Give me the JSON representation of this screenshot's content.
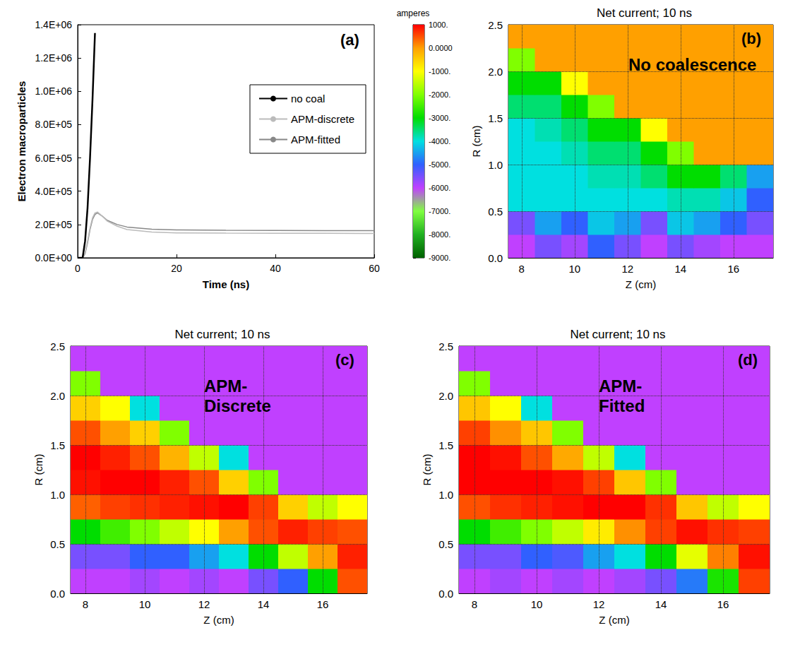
{
  "chart_data": [
    {
      "type": "line",
      "panel_label": "(a)",
      "x_label": "Time (ns)",
      "y_label": "Electron macroparticles",
      "x": [
        0,
        1,
        1.5,
        2,
        2.5,
        3,
        3.5,
        4,
        5,
        6,
        8,
        10,
        15,
        20,
        30,
        40,
        50,
        60
      ],
      "series": [
        {
          "name": "no coal",
          "color": "#000000",
          "values": [
            0,
            0,
            100000,
            300000,
            600000,
            950000,
            1350000,
            null,
            null,
            null,
            null,
            null,
            null,
            null,
            null,
            null,
            null,
            null
          ]
        },
        {
          "name": "APM-discrete",
          "color": "#bbbbbb",
          "values": [
            0,
            0,
            30000,
            100000,
            180000,
            240000,
            270000,
            275000,
            250000,
            220000,
            190000,
            170000,
            155000,
            150000,
            148000,
            147000,
            147000,
            146000
          ]
        },
        {
          "name": "APM-fitted",
          "color": "#888888",
          "values": [
            0,
            0,
            25000,
            90000,
            170000,
            230000,
            260000,
            270000,
            250000,
            225000,
            200000,
            185000,
            172000,
            168000,
            165000,
            164000,
            163000,
            163000
          ]
        }
      ],
      "xlim": [
        0,
        60
      ],
      "xticks": [
        0,
        20,
        40,
        60
      ],
      "ylim": [
        0,
        1400000
      ],
      "yticks": [
        {
          "value": 0,
          "label": "0.0E+00"
        },
        {
          "value": 200000,
          "label": "2.0E+05"
        },
        {
          "value": 400000,
          "label": "4.0E+05"
        },
        {
          "value": 600000,
          "label": "6.0E+05"
        },
        {
          "value": 800000,
          "label": "8.0E+05"
        },
        {
          "value": 1000000,
          "label": "1.0E+06"
        },
        {
          "value": 1200000,
          "label": "1.2E+06"
        },
        {
          "value": 1400000,
          "label": "1.4E+06"
        }
      ],
      "legend": "upper right",
      "grid": false
    },
    {
      "type": "colorbar",
      "title": "amperes",
      "range": [
        -9000,
        1000
      ],
      "ticks": [
        {
          "value": 1000,
          "label": "1000."
        },
        {
          "value": 0,
          "label": "0.0000"
        },
        {
          "value": -1000,
          "label": "-1000."
        },
        {
          "value": -2000,
          "label": "-2000."
        },
        {
          "value": -3000,
          "label": "-3000."
        },
        {
          "value": -4000,
          "label": "-4000."
        },
        {
          "value": -5000,
          "label": "-5000."
        },
        {
          "value": -6000,
          "label": "-6000."
        },
        {
          "value": -7000,
          "label": "-7000."
        },
        {
          "value": -8000,
          "label": "-8000."
        },
        {
          "value": -9000,
          "label": "-9000."
        }
      ]
    },
    {
      "type": "heatmap",
      "title": "Net current; 10 ns",
      "panel_label": "(b)",
      "annotation": "No coalescence",
      "x_label": "Z (cm)",
      "y_label": "R (cm)",
      "xlim": [
        7.5,
        17.5
      ],
      "xticks": [
        8,
        10,
        12,
        14,
        16
      ],
      "ylim": [
        0,
        2.5
      ],
      "yticks": [
        {
          "value": 0,
          "label": "0.0"
        },
        0.5,
        {
          "value": 1,
          "label": "1.0"
        },
        1.5,
        {
          "value": 2,
          "label": "2.0"
        },
        2.5
      ],
      "grid": true,
      "z": [
        8,
        9,
        10,
        11,
        12,
        13,
        14,
        15,
        16,
        17
      ],
      "r": [
        0.125,
        0.375,
        0.625,
        0.875,
        1.125,
        1.375,
        1.625,
        1.875,
        2.125,
        2.375
      ],
      "cells": [
        [
          -6000,
          -5500,
          -5800,
          -5000,
          -5500,
          -6000,
          -5500,
          -5800,
          -6000,
          -6000
        ],
        [
          -5500,
          -4500,
          -5000,
          -4200,
          -4500,
          -5500,
          -4200,
          -4500,
          -5000,
          -5500
        ],
        [
          -4000,
          -4000,
          -4000,
          -4000,
          -4000,
          -4000,
          -3800,
          -3800,
          -4200,
          -5000
        ],
        [
          -4000,
          -4000,
          -4000,
          -3800,
          -3800,
          -3500,
          -3000,
          -3000,
          -3500,
          -4500
        ],
        [
          -4000,
          -4000,
          -3800,
          -3500,
          -3500,
          -3000,
          -2000,
          0,
          0,
          0
        ],
        [
          -4000,
          -3800,
          -3500,
          -3000,
          -3000,
          -1000,
          0,
          0,
          0,
          0
        ],
        [
          -3500,
          -3500,
          -3000,
          -2000,
          0,
          0,
          0,
          0,
          0,
          0
        ],
        [
          -3000,
          -3000,
          -1000,
          0,
          0,
          0,
          0,
          0,
          0,
          0
        ],
        [
          -2000,
          0,
          0,
          0,
          0,
          0,
          0,
          0,
          0,
          0
        ],
        [
          0,
          0,
          0,
          0,
          0,
          0,
          0,
          0,
          0,
          0
        ]
      ]
    },
    {
      "type": "heatmap",
      "title": "Net current; 10 ns",
      "panel_label": "(c)",
      "annotation": "APM-Discrete",
      "x_label": "Z (cm)",
      "y_label": "R (cm)",
      "xlim": [
        7.5,
        17.5
      ],
      "xticks": [
        8,
        10,
        12,
        14,
        16
      ],
      "ylim": [
        0,
        2.5
      ],
      "yticks": [
        {
          "value": 0,
          "label": "0.0"
        },
        0.5,
        {
          "value": 1,
          "label": "1.0"
        },
        1.5,
        {
          "value": 2,
          "label": "2.0"
        },
        2.5
      ],
      "grid": true,
      "z": [
        8,
        9,
        10,
        11,
        12,
        13,
        14,
        15,
        16,
        17
      ],
      "r": [
        0.125,
        0.375,
        0.625,
        0.875,
        1.125,
        1.375,
        1.625,
        1.875,
        2.125,
        2.375
      ],
      "cells": [
        [
          -6000,
          -6000,
          -5800,
          -6000,
          -5800,
          -6000,
          -5500,
          -5000,
          -3000,
          500
        ],
        [
          -5500,
          -5500,
          -5000,
          -5000,
          -4500,
          -4000,
          -3000,
          -1500,
          0,
          800
        ],
        [
          -3000,
          -2500,
          -2000,
          -1500,
          -1000,
          0,
          500,
          800,
          600,
          500
        ],
        [
          400,
          600,
          700,
          800,
          900,
          1000,
          600,
          -500,
          -1500,
          -1000
        ],
        [
          900,
          1000,
          1000,
          800,
          500,
          -500,
          -2000,
          -6000,
          -6000,
          -6000
        ],
        [
          1000,
          800,
          500,
          -200,
          -1500,
          -4000,
          -6000,
          -6000,
          -6000,
          -6000
        ],
        [
          500,
          0,
          -500,
          -2000,
          -6000,
          -6000,
          -6000,
          -6000,
          -6000,
          -6000
        ],
        [
          -500,
          -1000,
          -4000,
          -6000,
          -6000,
          -6000,
          -6000,
          -6000,
          -6000,
          -6000
        ],
        [
          -2000,
          -6000,
          -6000,
          -6000,
          -6000,
          -6000,
          -6000,
          -6000,
          -6000,
          -6000
        ],
        [
          -6000,
          -6000,
          -6000,
          -6000,
          -6000,
          -6000,
          -6000,
          -6000,
          -6000,
          -6000
        ]
      ]
    },
    {
      "type": "heatmap",
      "title": "Net current; 10 ns",
      "panel_label": "(d)",
      "annotation": "APM-Fitted",
      "x_label": "Z (cm)",
      "y_label": "R (cm)",
      "xlim": [
        7.5,
        17.5
      ],
      "xticks": [
        8,
        10,
        12,
        14,
        16
      ],
      "ylim": [
        0,
        2.5
      ],
      "yticks": [
        {
          "value": 0,
          "label": "0.0"
        },
        0.5,
        {
          "value": 1,
          "label": "1.0"
        },
        1.5,
        {
          "value": 2,
          "label": "2.0"
        },
        2.5
      ],
      "grid": true,
      "z": [
        8,
        9,
        10,
        11,
        12,
        13,
        14,
        15,
        16,
        17
      ],
      "r": [
        0.125,
        0.375,
        0.625,
        0.875,
        1.125,
        1.375,
        1.625,
        1.875,
        2.125,
        2.375
      ],
      "cells": [
        [
          -6000,
          -5800,
          -6000,
          -5800,
          -6000,
          -5800,
          -5500,
          -4800,
          -2800,
          600
        ],
        [
          -5500,
          -5500,
          -5000,
          -5200,
          -4500,
          -4000,
          -3000,
          -1200,
          200,
          900
        ],
        [
          -3000,
          -2500,
          -2000,
          -1500,
          -800,
          100,
          600,
          900,
          700,
          600
        ],
        [
          500,
          700,
          800,
          900,
          1000,
          1000,
          700,
          -400,
          -1500,
          -1000
        ],
        [
          1000,
          1000,
          1000,
          900,
          600,
          -400,
          -2000,
          -6000,
          -6000,
          -6000
        ],
        [
          1000,
          900,
          500,
          -100,
          -1500,
          -4000,
          -6000,
          -6000,
          -6000,
          -6000
        ],
        [
          600,
          100,
          -400,
          -2000,
          -6000,
          -6000,
          -6000,
          -6000,
          -6000,
          -6000
        ],
        [
          -400,
          -1000,
          -4000,
          -6000,
          -6000,
          -6000,
          -6000,
          -6000,
          -6000,
          -6000
        ],
        [
          -2000,
          -6000,
          -6000,
          -6000,
          -6000,
          -6000,
          -6000,
          -6000,
          -6000,
          -6000
        ],
        [
          -6000,
          -6000,
          -6000,
          -6000,
          -6000,
          -6000,
          -6000,
          -6000,
          -6000,
          -6000
        ]
      ]
    }
  ]
}
